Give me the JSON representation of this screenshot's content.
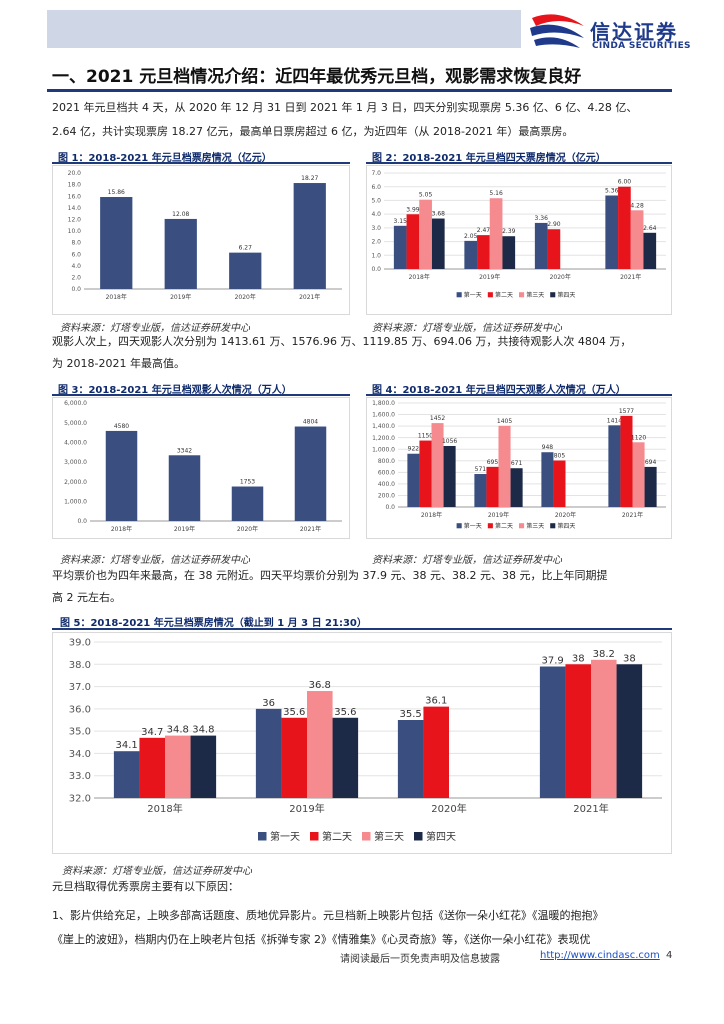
{
  "header": {
    "logo_cn": "信达证券",
    "logo_en": "CINDA SECURITIES"
  },
  "section_title": "一、2021 元旦档情况介绍：近四年最优秀元旦档，观影需求恢复良好",
  "paragraphs": {
    "p1_line1": "2021 年元旦档共 4 天，从 2020 年 12 月 31 日到 2021 年 1 月 3 日，四天分别实现票房 5.36 亿、6 亿、4.28 亿、",
    "p1_line2": "2.64 亿，共计实现票房 18.27 亿元，最高单日票房超过 6 亿，为近四年（从 2018-2021 年）最高票房。",
    "p2_line1": "观影人次上，四天观影人次分别为 1413.61 万、1576.96 万、1119.85 万、694.06 万，共接待观影人次 4804 万，",
    "p2_line2": "为 2018-2021 年最高值。",
    "p3_line1": "平均票价也为四年来最高，在 38 元附近。四天平均票价分别为 37.9 元、38 元、38.2 元、38 元，比上年同期提",
    "p3_line2": "高 2 元左右。",
    "p4_line1": "元旦档取得优秀票房主要有以下原因：",
    "p5_line1": "1、影片供给充足，上映多部高话题度、质地优异影片。元旦档新上映影片包括《送你一朵小红花》《温暖的抱抱》",
    "p5_line2": "《崖上的波妞》，档期内仍在上映老片包括《拆弹专家 2》《情雅集》《心灵奇旅》等，《送你一朵小红花》表现优"
  },
  "source_text": "资料来源：灯塔专业版，信达证券研发中心",
  "colors": {
    "series": [
      "#3a4f80",
      "#e8141b",
      "#f58a8f",
      "#1c2a47"
    ],
    "heading": "#0f2a6b",
    "accent_line": "#1f3a7a"
  },
  "chart_data": [
    {
      "id": "fig1",
      "figure_title": "图 1：2018-2021 年元旦档票房情况（亿元）",
      "type": "bar",
      "categories": [
        "2018年",
        "2019年",
        "2020年",
        "2021年"
      ],
      "values": [
        15.86,
        12.08,
        6.27,
        18.27
      ],
      "value_labels": [
        "15.86",
        "12.08",
        "6.27",
        "18.27"
      ],
      "ylim": [
        0,
        20
      ],
      "yticks": [
        "0.0",
        "2.0",
        "4.0",
        "6.0",
        "8.0",
        "10.0",
        "12.0",
        "14.0",
        "16.0",
        "18.0",
        "20.0"
      ],
      "grid": false,
      "legend": []
    },
    {
      "id": "fig2",
      "figure_title": "图 2：2018-2021 年元旦档四天票房情况（亿元）",
      "type": "bar",
      "categories": [
        "2018年",
        "2019年",
        "2020年",
        "2021年"
      ],
      "series": [
        {
          "name": "第一天",
          "values": [
            3.15,
            2.05,
            3.36,
            5.36
          ],
          "labels": [
            "3.15",
            "2.05",
            "3.36",
            "5.36"
          ]
        },
        {
          "name": "第二天",
          "values": [
            3.99,
            2.47,
            2.9,
            6.0
          ],
          "labels": [
            "3.99",
            "2.47",
            "2.90",
            "6.00"
          ]
        },
        {
          "name": "第三天",
          "values": [
            5.05,
            5.16,
            null,
            4.28
          ],
          "labels": [
            "5.05",
            "5.16",
            "",
            "4.28"
          ]
        },
        {
          "name": "第四天",
          "values": [
            3.68,
            2.39,
            null,
            2.64
          ],
          "labels": [
            "3.68",
            "2.39",
            "",
            "2.64"
          ]
        }
      ],
      "ylim": [
        0,
        7
      ],
      "yticks": [
        "0.0",
        "1.0",
        "2.0",
        "3.0",
        "4.0",
        "5.0",
        "6.0",
        "7.0"
      ],
      "grid": true,
      "legend": "bottom"
    },
    {
      "id": "fig3",
      "figure_title": "图 3：2018-2021 年元旦档观影人次情况（万人）",
      "type": "bar",
      "categories": [
        "2018年",
        "2019年",
        "2020年",
        "2021年"
      ],
      "values": [
        4580,
        3342,
        1753,
        4804
      ],
      "value_labels": [
        "4580",
        "3342",
        "1753",
        "4804"
      ],
      "ylim": [
        0,
        6000
      ],
      "yticks": [
        "0.0",
        "1,000.0",
        "2,000.0",
        "3,000.0",
        "4,000.0",
        "5,000.0",
        "6,000.0"
      ],
      "grid": false,
      "legend": []
    },
    {
      "id": "fig4",
      "figure_title": "图 4：2018-2021 年元旦档四天观影人次情况（万人）",
      "type": "bar",
      "categories": [
        "2018年",
        "2019年",
        "2020年",
        "2021年"
      ],
      "series": [
        {
          "name": "第一天",
          "values": [
            922,
            571,
            948,
            1414
          ],
          "labels": [
            "922",
            "571",
            "948",
            "1414"
          ]
        },
        {
          "name": "第二天",
          "values": [
            1150,
            695,
            805,
            1577
          ],
          "labels": [
            "1150",
            "695",
            "805",
            "1577"
          ]
        },
        {
          "name": "第三天",
          "values": [
            1452,
            1405,
            null,
            1120
          ],
          "labels": [
            "1452",
            "1405",
            "",
            "1120"
          ]
        },
        {
          "name": "第四天",
          "values": [
            1056,
            671,
            null,
            694
          ],
          "labels": [
            "1056",
            "671",
            "",
            "694"
          ]
        }
      ],
      "ylim": [
        0,
        1800
      ],
      "yticks": [
        "0.0",
        "200.0",
        "400.0",
        "600.0",
        "800.0",
        "1,000.0",
        "1,200.0",
        "1,400.0",
        "1,600.0",
        "1,800.0"
      ],
      "grid": true,
      "legend": "bottom"
    },
    {
      "id": "fig5",
      "figure_title": "图 5：2018-2021 年元旦档票房情况（截止到 1 月 3 日 21:30）",
      "type": "bar",
      "categories": [
        "2018年",
        "2019年",
        "2020年",
        "2021年"
      ],
      "series": [
        {
          "name": "第一天",
          "values": [
            34.1,
            36,
            35.5,
            37.9
          ],
          "labels": [
            "34.1",
            "36",
            "35.5",
            "37.9"
          ]
        },
        {
          "name": "第二天",
          "values": [
            34.7,
            35.6,
            36.1,
            38
          ],
          "labels": [
            "34.7",
            "35.6",
            "36.1",
            "38"
          ]
        },
        {
          "name": "第三天",
          "values": [
            34.8,
            36.8,
            null,
            38.2
          ],
          "labels": [
            "34.8",
            "36.8",
            "",
            "38.2"
          ]
        },
        {
          "name": "第四天",
          "values": [
            34.8,
            35.6,
            null,
            38
          ],
          "labels": [
            "34.8",
            "35.6",
            "",
            "38"
          ]
        }
      ],
      "ylim": [
        32,
        39
      ],
      "yticks": [
        "32.0",
        "33.0",
        "34.0",
        "35.0",
        "36.0",
        "37.0",
        "38.0",
        "39.0"
      ],
      "grid": true,
      "legend": "bottom"
    }
  ],
  "footer": {
    "disclaimer": "请阅读最后一页免责声明及信息披露",
    "url": "http://www.cindasc.com",
    "page": "4"
  }
}
